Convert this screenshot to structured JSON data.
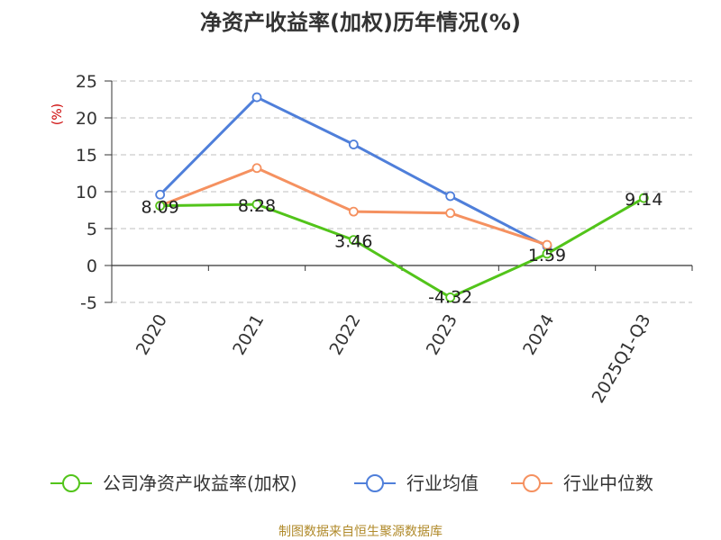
{
  "chart_data": {
    "type": "line",
    "title": "净资产收益率(加权)历年情况(%)",
    "unit": "(%)",
    "categories": [
      "2020",
      "2021",
      "2022",
      "2023",
      "2024",
      "2025Q1-Q3"
    ],
    "ylim": [
      -5,
      25
    ],
    "yticks": [
      -5,
      0,
      5,
      10,
      15,
      20,
      25
    ],
    "grid": true,
    "legend_position": "bottom",
    "series": [
      {
        "name": "公司净资产收益率(加权)",
        "color": "#52c41a",
        "values": [
          8.09,
          8.28,
          3.46,
          -4.32,
          1.59,
          9.14
        ],
        "labels": [
          "8.09",
          "8.28",
          "3.46",
          "-4.32",
          "1.59",
          "9.14"
        ]
      },
      {
        "name": "行业均值",
        "color": "#4f7fda",
        "values": [
          9.6,
          22.8,
          16.4,
          9.4,
          2.6,
          null
        ]
      },
      {
        "name": "行业中位数",
        "color": "#f59160",
        "values": [
          8.1,
          13.2,
          7.3,
          7.1,
          2.8,
          null
        ]
      }
    ]
  },
  "source": "制图数据来自恒生聚源数据库"
}
